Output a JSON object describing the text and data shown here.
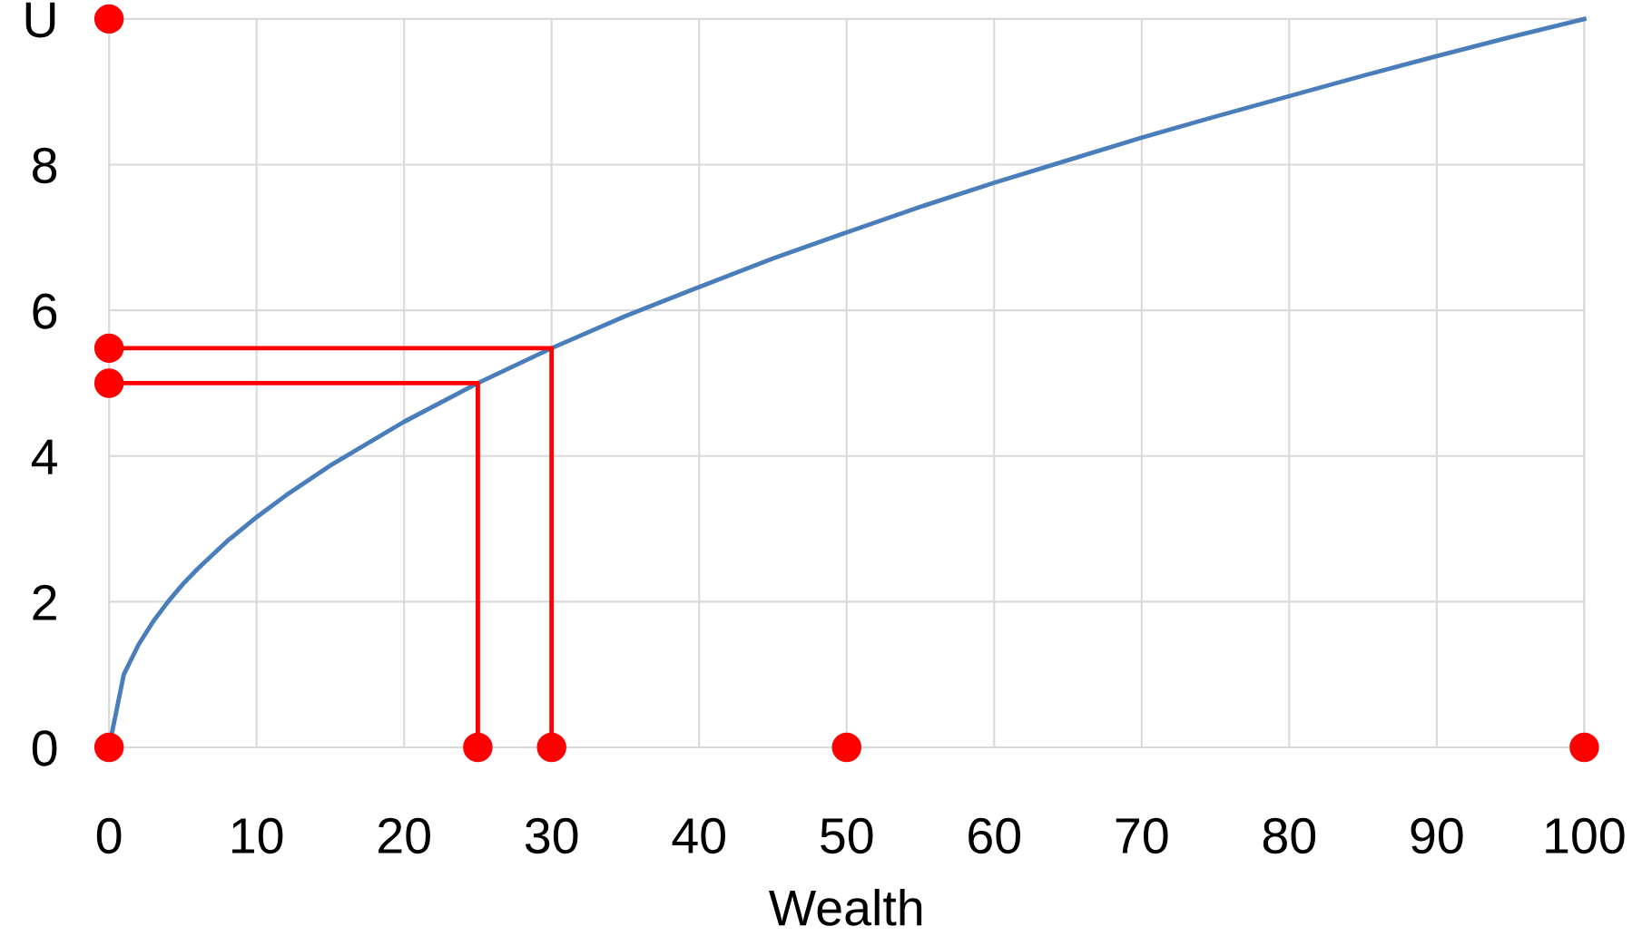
{
  "chart_data": {
    "type": "line",
    "xlabel": "Wealth",
    "xlim": [
      0,
      100
    ],
    "ylim": [
      0,
      10
    ],
    "xticks": [
      0,
      10,
      20,
      30,
      40,
      50,
      60,
      70,
      80,
      90,
      100
    ],
    "yticks": [
      0,
      2,
      4,
      6,
      8,
      {
        "value": 10,
        "label": "U"
      }
    ],
    "grid": true,
    "legend": false,
    "marker": "none",
    "line_style": "solid",
    "series": [
      {
        "color": "#4a7ebb",
        "x": [
          0,
          1,
          2,
          3,
          4,
          5,
          6,
          8,
          10,
          12,
          15,
          20,
          25,
          30,
          35,
          40,
          45,
          50,
          55,
          60,
          65,
          70,
          75,
          80,
          85,
          90,
          95,
          100
        ],
        "values": [
          0,
          1,
          1.41,
          1.73,
          2,
          2.24,
          2.45,
          2.83,
          3.16,
          3.46,
          3.87,
          4.47,
          5,
          5.48,
          5.92,
          6.32,
          6.71,
          7.07,
          7.42,
          7.75,
          8.06,
          8.37,
          8.66,
          8.94,
          9.22,
          9.49,
          9.75,
          10
        ]
      },
      {
        "type": "line",
        "color": "#ff0000",
        "x": [
          0,
          25,
          25
        ],
        "values": [
          5,
          5,
          0
        ]
      },
      {
        "type": "line",
        "color": "#ff0000",
        "x": [
          0,
          30,
          30
        ],
        "values": [
          5.48,
          5.48,
          0
        ]
      },
      {
        "type": "scatter",
        "color": "#ff0000",
        "marker": "circle",
        "x": [
          0,
          0,
          0,
          0,
          25,
          30,
          50,
          100
        ],
        "values": [
          10,
          5.48,
          5,
          0,
          0,
          0,
          0,
          0
        ]
      }
    ]
  }
}
